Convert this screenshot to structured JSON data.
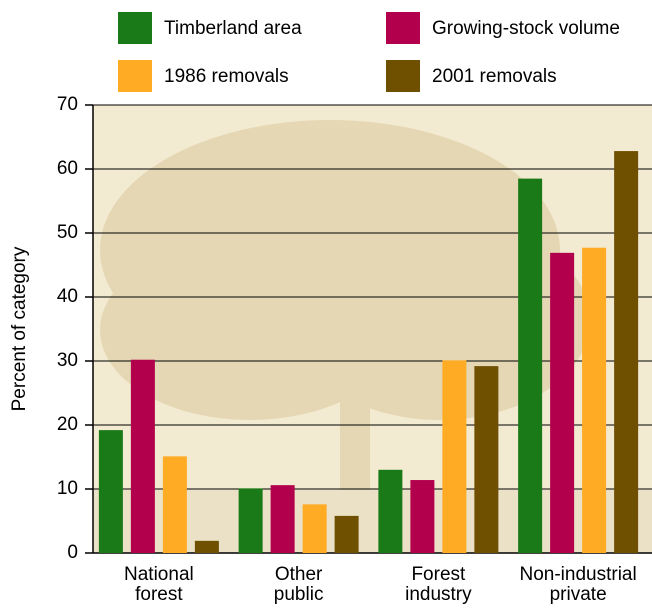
{
  "chart_data": {
    "type": "bar",
    "y_label": "Percent of category",
    "categories": [
      "National forest",
      "Other public",
      "Forest industry",
      "Non-industrial private"
    ],
    "series": [
      {
        "name": "Timberland area",
        "color": "#1b7a18",
        "values": [
          19.2,
          10.1,
          13,
          58.5
        ]
      },
      {
        "name": "Growing-stock volume",
        "color": "#b3004c",
        "values": [
          30.2,
          10.6,
          11.4,
          46.9
        ]
      },
      {
        "name": "1986 removals",
        "color": "#ffab24",
        "values": [
          15.1,
          7.6,
          30.1,
          47.7
        ]
      },
      {
        "name": "2001 removals",
        "color": "#6f4f00",
        "values": [
          1.9,
          5.8,
          29.2,
          62.8
        ]
      }
    ],
    "ylim": [
      0,
      70
    ],
    "yticks": [
      0,
      10,
      20,
      30,
      40,
      50,
      60,
      70
    ],
    "grid": true
  }
}
